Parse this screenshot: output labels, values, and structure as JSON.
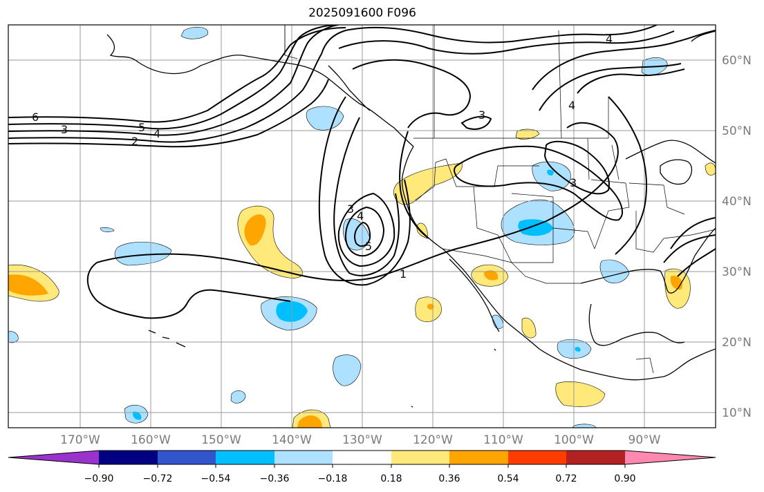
{
  "title": "2025091600 F096",
  "latitude_labels": [
    "60°N",
    "50°N",
    "40°N",
    "30°N",
    "20°N",
    "10°N"
  ],
  "longitude_labels": [
    "170°W",
    "160°W",
    "150°W",
    "140°W",
    "130°W",
    "120°W",
    "110°W",
    "100°W",
    "90°W"
  ],
  "colorbar": {
    "ticks": [
      "−0.90",
      "−0.72",
      "−0.54",
      "−0.36",
      "−0.18",
      "0.18",
      "0.36",
      "0.54",
      "0.72",
      "0.90"
    ],
    "colors": [
      "#9933cc",
      "#000080",
      "#3355cc",
      "#00bfff",
      "#aee0ff",
      "#ffffff",
      "#ffe97a",
      "#ffa500",
      "#ff3c00",
      "#b22222",
      "#ff88b0"
    ]
  },
  "contour_labels": [
    "6",
    "3",
    "5",
    "4",
    "2",
    "3",
    "4",
    "5",
    "1",
    "3",
    "4",
    "3",
    "4"
  ],
  "colors": {
    "land_line": "#000000",
    "grid": "#999999",
    "contour": "#000000"
  }
}
